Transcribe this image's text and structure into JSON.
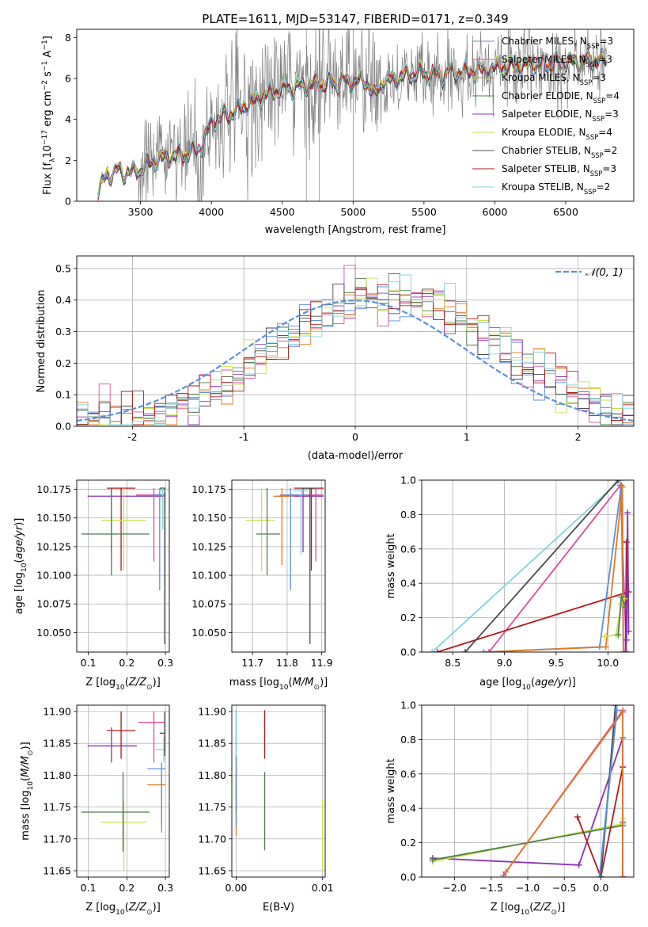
{
  "figure": {
    "title": "PLATE=1611, MJD=53147, FIBERID=0171, z=0.349"
  },
  "colors": {
    "Chabrier MILES": "#5b8fd6",
    "Salpeter MILES": "#d94f9f",
    "Kroupa MILES": "#e07a1f",
    "Chabrier ELODIE": "#4a7f4a",
    "Salpeter ELODIE": "#8e2fae",
    "Kroupa ELODIE": "#c8e04a",
    "Chabrier STELIB": "#4a4a4a",
    "Salpeter STELIB": "#b01818",
    "Kroupa STELIB": "#7fd3dd",
    "data": "#808080",
    "normal": "#5b8fd6"
  },
  "chart_data": [
    {
      "id": "spectrum",
      "type": "line",
      "xlabel": "wavelength [Angstrom, rest frame]",
      "ylabel": "Flux [f_λ 10^-17 erg cm^-2 s^-1 A^-1]",
      "xlim": [
        3050,
        6980
      ],
      "ylim": [
        0,
        8.4
      ],
      "xticks": [
        3500,
        4000,
        4500,
        5000,
        5500,
        6000,
        6500
      ],
      "yticks": [
        0,
        2,
        4,
        6,
        8
      ],
      "grid": false,
      "legend_position": "right",
      "continuum_knots": {
        "x": [
          3200,
          3260,
          3300,
          3350,
          3450,
          3520,
          3600,
          3700,
          3800,
          3900,
          3950,
          4000,
          4100,
          4200,
          4300,
          4400,
          4500,
          4600,
          4700,
          4800,
          4900,
          5000,
          5100,
          5150,
          5200,
          5300,
          5400,
          5500,
          5600,
          5700,
          5800,
          5900,
          6000,
          6100,
          6200,
          6300,
          6400,
          6500,
          6600,
          6700,
          6790
        ],
        "y": [
          0.4,
          1.3,
          1.4,
          1.45,
          1.4,
          1.7,
          2.0,
          2.2,
          2.3,
          2.5,
          3.0,
          3.9,
          4.2,
          4.5,
          4.9,
          5.3,
          5.5,
          5.6,
          5.7,
          5.75,
          5.8,
          5.85,
          5.9,
          5.1,
          5.8,
          6.0,
          6.2,
          6.3,
          6.1,
          6.3,
          6.35,
          6.4,
          6.5,
          6.6,
          6.6,
          6.7,
          6.75,
          6.8,
          6.8,
          6.9,
          6.9
        ]
      },
      "series": [
        {
          "name": "Chabrier MILES",
          "n_ssp": "3"
        },
        {
          "name": "Salpeter MILES",
          "n_ssp": "3"
        },
        {
          "name": "Kroupa MILES",
          "n_ssp": "3"
        },
        {
          "name": "Chabrier ELODIE",
          "n_ssp": "4"
        },
        {
          "name": "Salpeter ELODIE",
          "n_ssp": "3"
        },
        {
          "name": "Kroupa ELODIE",
          "n_ssp": "4"
        },
        {
          "name": "Chabrier STELIB",
          "n_ssp": "2"
        },
        {
          "name": "Salpeter STELIB",
          "n_ssp": "3"
        },
        {
          "name": "Kroupa STELIB",
          "n_ssp": "2"
        }
      ]
    },
    {
      "id": "residuals",
      "type": "line",
      "xlabel": "(data-model)/error",
      "ylabel": "Normed distribution",
      "xlim": [
        -2.5,
        2.5
      ],
      "ylim": [
        0,
        0.54
      ],
      "xticks": [
        -2,
        -1,
        0,
        1,
        2
      ],
      "yticks": [
        0.0,
        0.1,
        0.2,
        0.3,
        0.4,
        0.5
      ],
      "grid": true,
      "legend_position": "top-right",
      "legend_label": "N(0,1)",
      "bins": 50,
      "peak_spike": {
        "x": -0.05,
        "y": 0.51
      }
    },
    {
      "id": "age_vs_Z",
      "type": "scatter",
      "xlabel": "Z [log10(Z/Z⊙)]",
      "ylabel": "age  [log10(age/yr)]",
      "xlim": [
        0.07,
        0.31
      ],
      "ylim": [
        10.033,
        10.183
      ],
      "xticks": [
        0.1,
        0.2,
        0.3
      ],
      "yticks": [
        10.05,
        10.075,
        10.1,
        10.125,
        10.15,
        10.175
      ],
      "grid": true,
      "points": [
        {
          "series": "Salpeter STELIB",
          "x": 0.185,
          "y": 10.176,
          "xerr": [
            0.148,
            0.222
          ],
          "yerr": [
            10.104,
            10.176
          ]
        },
        {
          "series": "Salpeter ELODIE",
          "x": 0.16,
          "y": 10.169,
          "xerr": [
            0.098,
            0.298
          ],
          "yerr": [
            10.12,
            10.176
          ]
        },
        {
          "series": "Kroupa ELODIE",
          "x": 0.192,
          "y": 10.148,
          "xerr": [
            0.133,
            0.25
          ],
          "yerr": [
            10.104,
            10.176
          ]
        },
        {
          "series": "Chabrier ELODIE",
          "x": 0.16,
          "y": 10.136,
          "xerr": [
            0.082,
            0.258
          ],
          "yerr": [
            10.1,
            10.176
          ]
        },
        {
          "series": "Salpeter MILES",
          "x": 0.27,
          "y": 10.17,
          "xerr": [
            0.224,
            0.3
          ],
          "yerr": [
            10.112,
            10.176
          ]
        },
        {
          "series": "Chabrier MILES",
          "x": 0.285,
          "y": 10.17,
          "xerr": [
            0.27,
            0.3
          ],
          "yerr": [
            10.087,
            10.176
          ]
        },
        {
          "series": "Chabrier STELIB",
          "x": 0.298,
          "y": 10.176,
          "xerr": [
            0.285,
            0.3
          ],
          "yerr": [
            10.04,
            10.176
          ]
        },
        {
          "series": "Kroupa STELIB",
          "x": 0.293,
          "y": 10.174,
          "xerr": [
            0.283,
            0.3
          ],
          "yerr": [
            10.14,
            10.176
          ]
        }
      ]
    },
    {
      "id": "age_vs_mass",
      "type": "scatter",
      "xlabel": "mass [log10(M/M⊙)]",
      "ylabel": "",
      "xlim": [
        11.64,
        11.91
      ],
      "ylim": [
        10.033,
        10.183
      ],
      "xticks": [
        11.7,
        11.8,
        11.9
      ],
      "yticks": [
        10.05,
        10.075,
        10.1,
        10.125,
        10.15,
        10.175
      ],
      "grid": true,
      "points": [
        {
          "series": "Salpeter STELIB",
          "x": 11.87,
          "y": 10.176,
          "xerr": [
            11.82,
            11.905
          ],
          "yerr": [
            10.104,
            10.176
          ]
        },
        {
          "series": "Salpeter ELODIE",
          "x": 11.846,
          "y": 10.169,
          "xerr": [
            11.77,
            11.905
          ],
          "yerr": [
            10.12,
            10.176
          ]
        },
        {
          "series": "Kroupa ELODIE",
          "x": 11.726,
          "y": 10.148,
          "xerr": [
            11.68,
            11.765
          ],
          "yerr": [
            10.104,
            10.176
          ]
        },
        {
          "series": "Chabrier ELODIE",
          "x": 11.742,
          "y": 10.136,
          "xerr": [
            11.71,
            11.78
          ],
          "yerr": [
            10.1,
            10.176
          ]
        },
        {
          "series": "Salpeter MILES",
          "x": 11.883,
          "y": 10.17,
          "xerr": [
            11.78,
            11.905
          ],
          "yerr": [
            10.112,
            10.176
          ]
        },
        {
          "series": "Kroupa MILES",
          "x": 11.785,
          "y": 10.169,
          "xerr": [
            11.76,
            11.82
          ],
          "yerr": [
            10.109,
            10.176
          ]
        },
        {
          "series": "Chabrier MILES",
          "x": 11.81,
          "y": 10.17,
          "xerr": [
            11.79,
            11.86
          ],
          "yerr": [
            10.087,
            10.176
          ]
        },
        {
          "series": "Kroupa STELIB",
          "x": 11.84,
          "y": 10.174,
          "xerr": [
            11.82,
            11.86
          ],
          "yerr": [
            10.118,
            10.176
          ]
        },
        {
          "series": "Chabrier STELIB",
          "x": 11.866,
          "y": 10.176,
          "xerr": [
            11.84,
            11.88
          ],
          "yerr": [
            10.04,
            10.176
          ]
        }
      ]
    },
    {
      "id": "weight_vs_age",
      "type": "line",
      "xlabel": "age  [log10(age/yr)]",
      "ylabel": "mass weight",
      "xlim": [
        8.2,
        10.25
      ],
      "ylim": [
        0,
        1
      ],
      "xticks": [
        8.5,
        9.0,
        9.5,
        10.0
      ],
      "yticks": [
        0.0,
        0.2,
        0.4,
        0.6,
        0.8,
        1.0
      ],
      "grid": true,
      "series": [
        {
          "name": "Kroupa STELIB",
          "x": [
            8.3,
            10.12
          ],
          "y": [
            0.0,
            1.0
          ]
        },
        {
          "name": "Chabrier STELIB",
          "x": [
            8.62,
            10.1
          ],
          "y": [
            0.0,
            1.0
          ]
        },
        {
          "name": "Salpeter MILES",
          "x": [
            8.85,
            10.12,
            10.18
          ],
          "y": [
            0.0,
            0.97,
            0.0
          ]
        },
        {
          "name": "Salpeter STELIB",
          "x": [
            8.35,
            10.2,
            10.18,
            10.17
          ],
          "y": [
            0.0,
            0.35,
            0.64,
            0.0
          ]
        },
        {
          "name": "Chabrier MILES",
          "x": [
            8.8,
            9.92,
            10.13,
            10.15
          ],
          "y": [
            0.0,
            0.03,
            0.97,
            0.0
          ]
        },
        {
          "name": "Kroupa MILES",
          "x": [
            8.8,
            9.98,
            10.14,
            10.15
          ],
          "y": [
            0.0,
            0.03,
            0.96,
            0.0
          ]
        },
        {
          "name": "Salpeter ELODIE",
          "x": [
            10.17,
            10.18,
            10.19,
            10.2
          ],
          "y": [
            0.0,
            0.07,
            0.81,
            0.12
          ]
        },
        {
          "name": "Kroupa ELODIE",
          "x": [
            9.97,
            10.08,
            10.13,
            10.16
          ],
          "y": [
            0.09,
            0.1,
            0.28,
            0.31
          ]
        },
        {
          "name": "Chabrier ELODIE",
          "x": [
            10.1,
            10.13,
            10.17
          ],
          "y": [
            0.1,
            0.32,
            0.26
          ]
        }
      ]
    },
    {
      "id": "mass_vs_Z",
      "type": "scatter",
      "xlabel": "Z [log10(Z/Z⊙)]",
      "ylabel": "mass [log10(M/M⊙)]",
      "xlim": [
        0.07,
        0.31
      ],
      "ylim": [
        11.64,
        11.91
      ],
      "xticks": [
        0.1,
        0.2,
        0.3
      ],
      "yticks": [
        11.65,
        11.7,
        11.75,
        11.8,
        11.85,
        11.9
      ],
      "grid": true,
      "points": [
        {
          "series": "Salpeter STELIB",
          "x": 0.185,
          "y": 11.87,
          "xerr": [
            0.148,
            0.222
          ],
          "yerr": [
            11.826,
            11.9
          ]
        },
        {
          "series": "Salpeter ELODIE",
          "x": 0.16,
          "y": 11.846,
          "xerr": [
            0.098,
            0.226
          ],
          "yerr": [
            11.82,
            11.875
          ]
        },
        {
          "series": "Kroupa ELODIE",
          "x": 0.192,
          "y": 11.726,
          "xerr": [
            0.133,
            0.25
          ],
          "yerr": [
            11.65,
            11.76
          ]
        },
        {
          "series": "Chabrier ELODIE",
          "x": 0.19,
          "y": 11.742,
          "xerr": [
            0.082,
            0.258
          ],
          "yerr": [
            11.68,
            11.805
          ]
        },
        {
          "series": "Salpeter MILES",
          "x": 0.27,
          "y": 11.883,
          "xerr": [
            0.23,
            0.3
          ],
          "yerr": [
            11.82,
            11.9
          ]
        },
        {
          "series": "Kroupa MILES",
          "x": 0.29,
          "y": 11.785,
          "xerr": [
            0.253,
            0.3
          ],
          "yerr": [
            11.71,
            11.8
          ]
        },
        {
          "series": "Chabrier MILES",
          "x": 0.29,
          "y": 11.81,
          "xerr": [
            0.253,
            0.3
          ],
          "yerr": [
            11.72,
            11.82
          ]
        },
        {
          "series": "Kroupa STELIB",
          "x": 0.296,
          "y": 11.84,
          "xerr": [
            0.275,
            0.3
          ],
          "yerr": [
            11.82,
            11.86
          ]
        },
        {
          "series": "Chabrier STELIB",
          "x": 0.298,
          "y": 11.866,
          "xerr": [
            0.285,
            0.3
          ],
          "yerr": [
            11.83,
            11.9
          ]
        }
      ]
    },
    {
      "id": "mass_vs_ebv",
      "type": "scatter",
      "xlabel": "E(B-V)",
      "ylabel": "",
      "xlim": [
        -0.0005,
        0.0103
      ],
      "ylim": [
        11.64,
        11.91
      ],
      "xticks": [
        0.0,
        0.01
      ],
      "xticklabels": [
        "0.00",
        "0.01"
      ],
      "yticks": [
        11.65,
        11.7,
        11.75,
        11.8,
        11.85,
        11.9
      ],
      "grid": true,
      "points": [
        {
          "series": "Salpeter STELIB",
          "x": 0.0033,
          "yerr": [
            11.826,
            11.902
          ]
        },
        {
          "series": "Chabrier ELODIE",
          "x": 0.0033,
          "yerr": [
            11.682,
            11.805
          ]
        },
        {
          "series": "Kroupa ELODIE",
          "x": 0.01,
          "yerr": [
            11.65,
            11.762
          ]
        },
        {
          "series": "Chabrier STELIB",
          "x": 0.0,
          "yerr": [
            11.74,
            11.902
          ]
        },
        {
          "series": "Kroupa STELIB",
          "x": 0.0,
          "yerr": [
            11.78,
            11.902
          ]
        },
        {
          "series": "Kroupa MILES",
          "x": 0.0,
          "yerr": [
            11.705,
            11.8
          ]
        },
        {
          "series": "Chabrier MILES",
          "x": 0.0,
          "yerr": [
            11.72,
            11.83
          ]
        }
      ]
    },
    {
      "id": "weight_vs_Z",
      "type": "line",
      "xlabel": "Z [log10(Z/Z⊙)]",
      "ylabel": "mass weight",
      "xlim": [
        -2.45,
        0.45
      ],
      "ylim": [
        0,
        1
      ],
      "xticks": [
        -2.0,
        -1.5,
        -1.0,
        -0.5,
        0.0
      ],
      "yticks": [
        0.0,
        0.2,
        0.4,
        0.6,
        0.8,
        1.0
      ],
      "grid": true,
      "series": [
        {
          "name": "Salpeter ELODIE",
          "x": [
            -2.3,
            -0.3,
            0.3,
            0.3
          ],
          "y": [
            0.11,
            0.07,
            0.81,
            0.0
          ]
        },
        {
          "name": "Kroupa ELODIE",
          "x": [
            -2.3,
            0.3,
            0.3
          ],
          "y": [
            0.09,
            0.31,
            0.34
          ]
        },
        {
          "name": "Chabrier ELODIE",
          "x": [
            -2.3,
            0.3,
            0.3
          ],
          "y": [
            0.1,
            0.3,
            0.32
          ]
        },
        {
          "name": "Salpeter STELIB",
          "x": [
            -0.32,
            0.0,
            0.3,
            0.3
          ],
          "y": [
            0.35,
            0.0,
            0.64,
            0.0
          ]
        },
        {
          "name": "Kroupa STELIB",
          "x": [
            0.0,
            0.22
          ],
          "y": [
            0.0,
            1.0
          ]
        },
        {
          "name": "Chabrier STELIB",
          "x": [
            0.0,
            0.2
          ],
          "y": [
            0.0,
            1.0
          ]
        },
        {
          "name": "Salpeter MILES",
          "x": [
            -1.33,
            0.3,
            0.3
          ],
          "y": [
            0.01,
            0.97,
            0.0
          ]
        },
        {
          "name": "Kroupa MILES",
          "x": [
            -1.3,
            0.3,
            0.3
          ],
          "y": [
            0.03,
            0.96,
            0.0
          ]
        },
        {
          "name": "Chabrier MILES",
          "x": [
            -0.02,
            0.22
          ],
          "y": [
            0.0,
            0.97
          ]
        }
      ]
    }
  ]
}
